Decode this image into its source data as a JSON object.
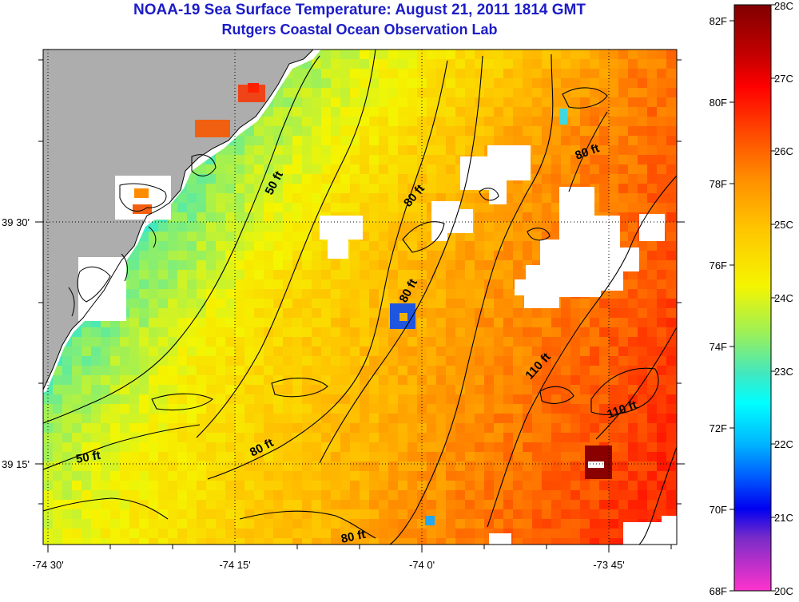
{
  "title": "NOAA-19 Sea Surface Temperature:  August 21, 2011 1814 GMT",
  "subtitle": "Rutgers Coastal Ocean Observation Lab",
  "axes": {
    "x_ticks": [
      "-74 30'",
      "-74 15'",
      "-74 0'",
      "-73 45'"
    ],
    "y_ticks": [
      "39 30'",
      "39 15'"
    ]
  },
  "contour_labels": [
    "50 ft",
    "50 ft",
    "80 ft",
    "80 ft",
    "80 ft",
    "80 ft",
    "80 ft",
    "110 ft",
    "110 ft"
  ],
  "colorbar": {
    "fahrenheit": [
      "82F",
      "80F",
      "78F",
      "76F",
      "74F",
      "72F",
      "70F",
      "68F"
    ],
    "celsius": [
      "28C",
      "27C",
      "26C",
      "25C",
      "24C",
      "23C",
      "22C",
      "21C",
      "20C"
    ],
    "celsius_range": [
      20,
      28
    ]
  },
  "colors": {
    "land": "#adadad",
    "cloud": "#ffffff",
    "title": "#1c1cc8"
  }
}
